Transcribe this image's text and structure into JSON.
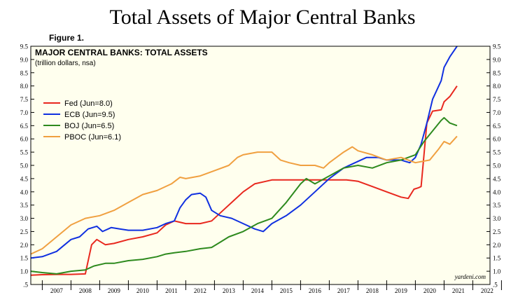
{
  "page": {
    "title": "Total Assets of Major Central Banks",
    "figure_label": "Figure 1."
  },
  "colors": {
    "background": "#ffffee",
    "fed": "#e8281e",
    "ecb": "#1030e0",
    "boj": "#2e8a1e",
    "pboc": "#f0a040"
  },
  "chart_data": {
    "type": "line",
    "title": "MAJOR CENTRAL BANKS: TOTAL ASSETS",
    "subtitle": "(trillion dollars, nsa)",
    "source": "yardeni.com",
    "xlim": [
      2006.6,
      2022.6
    ],
    "ylim": [
      0.5,
      9.5
    ],
    "y_ticks": [
      ".5",
      "1.0",
      "1.5",
      "2.0",
      "2.5",
      "3.0",
      "3.5",
      "4.0",
      "4.5",
      "5.0",
      "5.5",
      "6.0",
      "6.5",
      "7.0",
      "7.5",
      "8.0",
      "8.5",
      "9.0",
      "9.5"
    ],
    "x_tick_labels": [
      "2007",
      "2008",
      "2009",
      "2010",
      "2011",
      "2012",
      "2013",
      "2014",
      "2015",
      "2016",
      "2017",
      "2018",
      "2019",
      "2020",
      "2021",
      "2022"
    ],
    "grid": false,
    "legend_position": "upper-left",
    "series": [
      {
        "name": "Fed (Jun=8.0)",
        "color_key": "fed",
        "x": [
          2006.6,
          2007.0,
          2007.5,
          2008.0,
          2008.5,
          2008.72,
          2008.9,
          2009.2,
          2009.5,
          2010.0,
          2010.5,
          2011.0,
          2011.3,
          2011.6,
          2012.0,
          2012.5,
          2012.9,
          2013.3,
          2013.7,
          2014.0,
          2014.4,
          2014.8,
          2015.0,
          2016.0,
          2017.0,
          2017.6,
          2018.0,
          2018.5,
          2019.0,
          2019.5,
          2019.75,
          2019.95,
          2020.1,
          2020.2,
          2020.4,
          2020.6,
          2020.9,
          2021.0,
          2021.2,
          2021.45
        ],
        "y": [
          0.85,
          0.87,
          0.88,
          0.88,
          0.9,
          2.0,
          2.2,
          2.0,
          2.05,
          2.2,
          2.3,
          2.45,
          2.75,
          2.9,
          2.8,
          2.8,
          2.9,
          3.3,
          3.7,
          4.0,
          4.3,
          4.4,
          4.45,
          4.45,
          4.45,
          4.45,
          4.4,
          4.2,
          4.0,
          3.8,
          3.75,
          4.1,
          4.15,
          4.2,
          6.6,
          7.05,
          7.1,
          7.4,
          7.6,
          8.0
        ]
      },
      {
        "name": "ECB (Jun=9.5)",
        "color_key": "ecb",
        "x": [
          2006.6,
          2007.0,
          2007.5,
          2008.0,
          2008.3,
          2008.6,
          2008.9,
          2009.1,
          2009.4,
          2009.7,
          2010.0,
          2010.5,
          2011.0,
          2011.3,
          2011.6,
          2011.8,
          2012.0,
          2012.2,
          2012.5,
          2012.7,
          2012.9,
          2013.2,
          2013.6,
          2014.0,
          2014.4,
          2014.7,
          2015.0,
          2015.5,
          2016.0,
          2016.5,
          2017.0,
          2017.5,
          2017.9,
          2018.3,
          2018.7,
          2019.0,
          2019.5,
          2019.8,
          2020.0,
          2020.2,
          2020.4,
          2020.6,
          2020.9,
          2021.0,
          2021.2,
          2021.45
        ],
        "y": [
          1.5,
          1.55,
          1.75,
          2.2,
          2.3,
          2.6,
          2.7,
          2.5,
          2.65,
          2.6,
          2.55,
          2.55,
          2.65,
          2.8,
          2.9,
          3.4,
          3.7,
          3.9,
          3.95,
          3.8,
          3.3,
          3.1,
          3.0,
          2.8,
          2.6,
          2.5,
          2.8,
          3.1,
          3.5,
          4.0,
          4.5,
          4.9,
          5.1,
          5.3,
          5.3,
          5.2,
          5.2,
          5.1,
          5.3,
          5.8,
          6.6,
          7.5,
          8.2,
          8.7,
          9.1,
          9.5
        ]
      },
      {
        "name": "BOJ (Jun=6.5)",
        "color_key": "boj",
        "x": [
          2006.6,
          2007.0,
          2007.5,
          2008.0,
          2008.5,
          2008.8,
          2009.2,
          2009.5,
          2010.0,
          2010.5,
          2011.0,
          2011.3,
          2011.6,
          2012.0,
          2012.5,
          2012.9,
          2013.2,
          2013.5,
          2014.0,
          2014.5,
          2015.0,
          2015.5,
          2016.0,
          2016.2,
          2016.5,
          2017.0,
          2017.5,
          2018.0,
          2018.5,
          2019.0,
          2019.5,
          2020.0,
          2020.3,
          2020.6,
          2020.9,
          2021.0,
          2021.2,
          2021.45
        ],
        "y": [
          1.0,
          0.95,
          0.9,
          1.0,
          1.05,
          1.2,
          1.3,
          1.3,
          1.4,
          1.45,
          1.55,
          1.65,
          1.7,
          1.75,
          1.85,
          1.9,
          2.1,
          2.3,
          2.5,
          2.8,
          3.0,
          3.6,
          4.3,
          4.5,
          4.3,
          4.6,
          4.9,
          5.0,
          4.9,
          5.1,
          5.2,
          5.4,
          5.9,
          6.3,
          6.7,
          6.8,
          6.6,
          6.5
        ]
      },
      {
        "name": "PBOC (Jun=6.1)",
        "color_key": "pboc",
        "x": [
          2006.6,
          2007.0,
          2007.5,
          2008.0,
          2008.5,
          2009.0,
          2009.5,
          2010.0,
          2010.5,
          2011.0,
          2011.5,
          2011.8,
          2012.0,
          2012.5,
          2013.0,
          2013.5,
          2013.8,
          2014.0,
          2014.5,
          2015.0,
          2015.3,
          2015.6,
          2016.0,
          2016.5,
          2016.8,
          2017.0,
          2017.5,
          2017.8,
          2018.0,
          2018.5,
          2019.0,
          2019.5,
          2020.0,
          2020.5,
          2020.8,
          2021.0,
          2021.2,
          2021.45
        ],
        "y": [
          1.65,
          1.85,
          2.3,
          2.75,
          3.0,
          3.1,
          3.3,
          3.6,
          3.9,
          4.05,
          4.3,
          4.55,
          4.5,
          4.6,
          4.8,
          5.0,
          5.3,
          5.4,
          5.5,
          5.5,
          5.2,
          5.1,
          5.0,
          5.0,
          4.9,
          5.1,
          5.5,
          5.7,
          5.55,
          5.4,
          5.2,
          5.3,
          5.1,
          5.2,
          5.6,
          5.9,
          5.8,
          6.1
        ]
      }
    ]
  }
}
